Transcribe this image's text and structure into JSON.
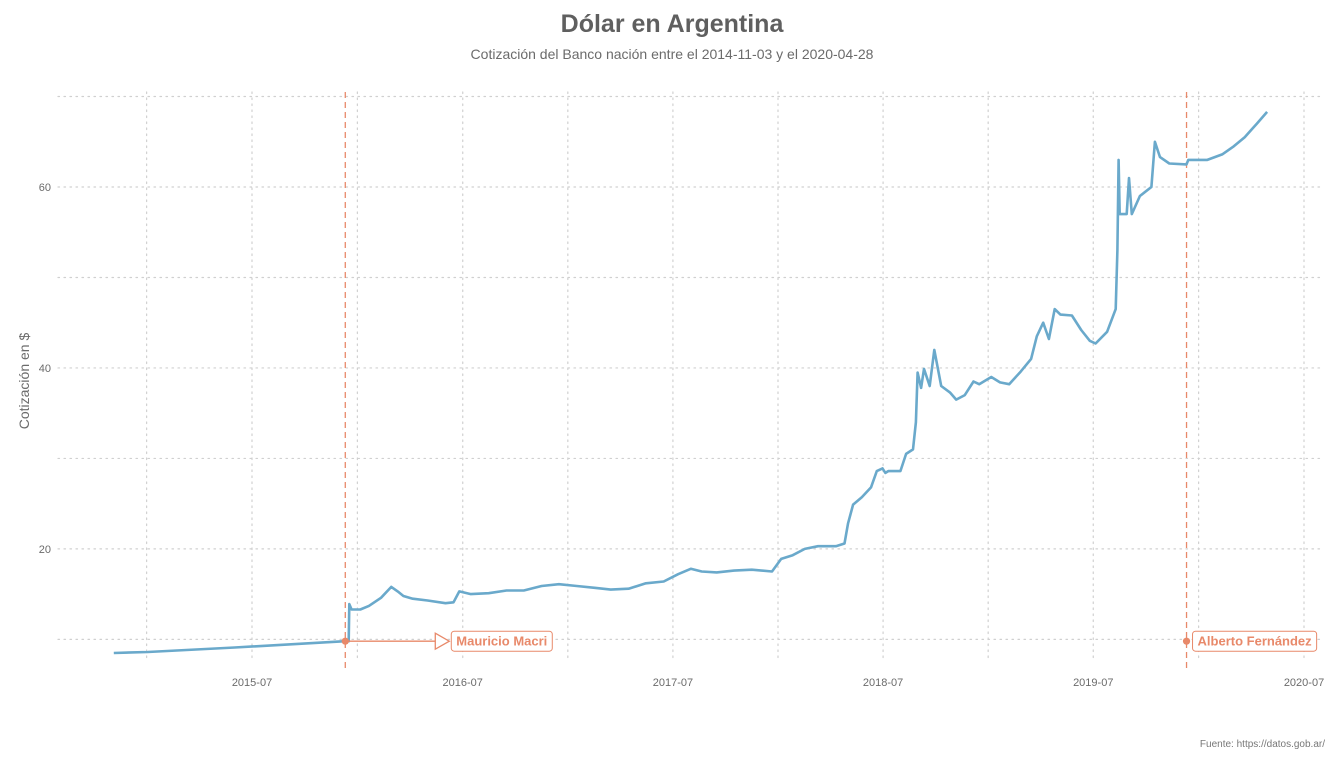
{
  "chart_data": {
    "type": "line",
    "title": "Dólar en Argentina",
    "subtitle": "Cotización del Banco nación entre el 2014-11-03 y el 2020-04-28",
    "ylabel": "Cotización en $",
    "xlabel": "",
    "caption": "Fuente: https://datos.gob.ar/",
    "xlim": [
      "2014-11-03",
      "2020-04-28"
    ],
    "ylim": [
      7.5,
      70.5
    ],
    "x_ticks": [
      {
        "date": "2015-07-01",
        "label": "2015-07"
      },
      {
        "date": "2016-07-01",
        "label": "2016-07"
      },
      {
        "date": "2017-07-01",
        "label": "2017-07"
      },
      {
        "date": "2018-07-01",
        "label": "2018-07"
      },
      {
        "date": "2019-07-01",
        "label": "2019-07"
      },
      {
        "date": "2020-07-01",
        "label": "2020-07"
      }
    ],
    "y_ticks": [
      20,
      40,
      60
    ],
    "grid": true,
    "series_color": "#6aa9cb",
    "annotation_color": "#e8896a",
    "series": [
      {
        "points": [
          [
            "2014-11-03",
            8.5
          ],
          [
            "2015-01-01",
            8.6
          ],
          [
            "2015-06-01",
            9.1
          ],
          [
            "2015-12-10",
            9.8
          ],
          [
            "2015-12-16",
            9.8
          ],
          [
            "2015-12-17",
            13.9
          ],
          [
            "2015-12-21",
            13.3
          ],
          [
            "2016-01-05",
            13.3
          ],
          [
            "2016-01-20",
            13.7
          ],
          [
            "2016-02-10",
            14.6
          ],
          [
            "2016-02-28",
            15.8
          ],
          [
            "2016-03-10",
            15.3
          ],
          [
            "2016-03-20",
            14.8
          ],
          [
            "2016-04-05",
            14.5
          ],
          [
            "2016-05-01",
            14.3
          ],
          [
            "2016-06-01",
            14.0
          ],
          [
            "2016-06-15",
            14.1
          ],
          [
            "2016-06-25",
            15.3
          ],
          [
            "2016-07-15",
            15.0
          ],
          [
            "2016-08-15",
            15.1
          ],
          [
            "2016-09-15",
            15.4
          ],
          [
            "2016-10-15",
            15.4
          ],
          [
            "2016-11-15",
            15.9
          ],
          [
            "2016-12-15",
            16.1
          ],
          [
            "2017-01-15",
            15.9
          ],
          [
            "2017-02-15",
            15.7
          ],
          [
            "2017-03-15",
            15.5
          ],
          [
            "2017-04-15",
            15.6
          ],
          [
            "2017-05-15",
            16.2
          ],
          [
            "2017-06-15",
            16.4
          ],
          [
            "2017-07-10",
            17.2
          ],
          [
            "2017-08-01",
            17.8
          ],
          [
            "2017-08-20",
            17.5
          ],
          [
            "2017-09-15",
            17.4
          ],
          [
            "2017-10-15",
            17.6
          ],
          [
            "2017-11-15",
            17.7
          ],
          [
            "2017-12-20",
            17.5
          ],
          [
            "2018-01-05",
            18.9
          ],
          [
            "2018-01-25",
            19.3
          ],
          [
            "2018-02-15",
            20.0
          ],
          [
            "2018-03-10",
            20.3
          ],
          [
            "2018-04-10",
            20.3
          ],
          [
            "2018-04-25",
            20.6
          ],
          [
            "2018-05-01",
            22.8
          ],
          [
            "2018-05-10",
            24.9
          ],
          [
            "2018-05-25",
            25.7
          ],
          [
            "2018-06-10",
            26.8
          ],
          [
            "2018-06-20",
            28.6
          ],
          [
            "2018-06-30",
            28.9
          ],
          [
            "2018-07-05",
            28.4
          ],
          [
            "2018-07-10",
            28.6
          ],
          [
            "2018-07-31",
            28.6
          ],
          [
            "2018-08-10",
            30.5
          ],
          [
            "2018-08-22",
            31.0
          ],
          [
            "2018-08-27",
            34.0
          ],
          [
            "2018-08-30",
            39.5
          ],
          [
            "2018-09-05",
            37.8
          ],
          [
            "2018-09-10",
            39.9
          ],
          [
            "2018-09-20",
            38.0
          ],
          [
            "2018-09-28",
            42.0
          ],
          [
            "2018-10-10",
            38.0
          ],
          [
            "2018-10-25",
            37.3
          ],
          [
            "2018-11-05",
            36.5
          ],
          [
            "2018-11-20",
            37.0
          ],
          [
            "2018-12-05",
            38.5
          ],
          [
            "2018-12-15",
            38.2
          ],
          [
            "2019-01-05",
            39.0
          ],
          [
            "2019-01-20",
            38.4
          ],
          [
            "2019-02-05",
            38.2
          ],
          [
            "2019-02-25",
            39.6
          ],
          [
            "2019-03-15",
            41.0
          ],
          [
            "2019-03-25",
            43.5
          ],
          [
            "2019-04-05",
            45.0
          ],
          [
            "2019-04-15",
            43.2
          ],
          [
            "2019-04-25",
            46.5
          ],
          [
            "2019-05-05",
            45.9
          ],
          [
            "2019-05-25",
            45.8
          ],
          [
            "2019-06-10",
            44.2
          ],
          [
            "2019-06-25",
            43.0
          ],
          [
            "2019-07-05",
            42.7
          ],
          [
            "2019-07-25",
            44.0
          ],
          [
            "2019-08-09",
            46.5
          ],
          [
            "2019-08-12",
            53.0
          ],
          [
            "2019-08-14",
            63.0
          ],
          [
            "2019-08-16",
            57.0
          ],
          [
            "2019-08-28",
            57.0
          ],
          [
            "2019-09-01",
            61.0
          ],
          [
            "2019-09-06",
            57.0
          ],
          [
            "2019-09-20",
            59.0
          ],
          [
            "2019-10-10",
            60.0
          ],
          [
            "2019-10-16",
            65.0
          ],
          [
            "2019-10-25",
            63.3
          ],
          [
            "2019-11-10",
            62.6
          ],
          [
            "2019-12-10",
            62.5
          ],
          [
            "2019-12-13",
            63.0
          ],
          [
            "2020-01-15",
            63.0
          ],
          [
            "2020-02-10",
            63.6
          ],
          [
            "2020-03-01",
            64.5
          ],
          [
            "2020-03-20",
            65.5
          ],
          [
            "2020-04-10",
            67.0
          ],
          [
            "2020-04-28",
            68.3
          ]
        ]
      }
    ],
    "annotations": [
      {
        "label": "Mauricio Macri",
        "date": "2015-12-10",
        "value": 9.8,
        "arrow": true
      },
      {
        "label": "Alberto Fernández",
        "date": "2019-12-10",
        "value": 9.8,
        "arrow": false
      }
    ]
  }
}
